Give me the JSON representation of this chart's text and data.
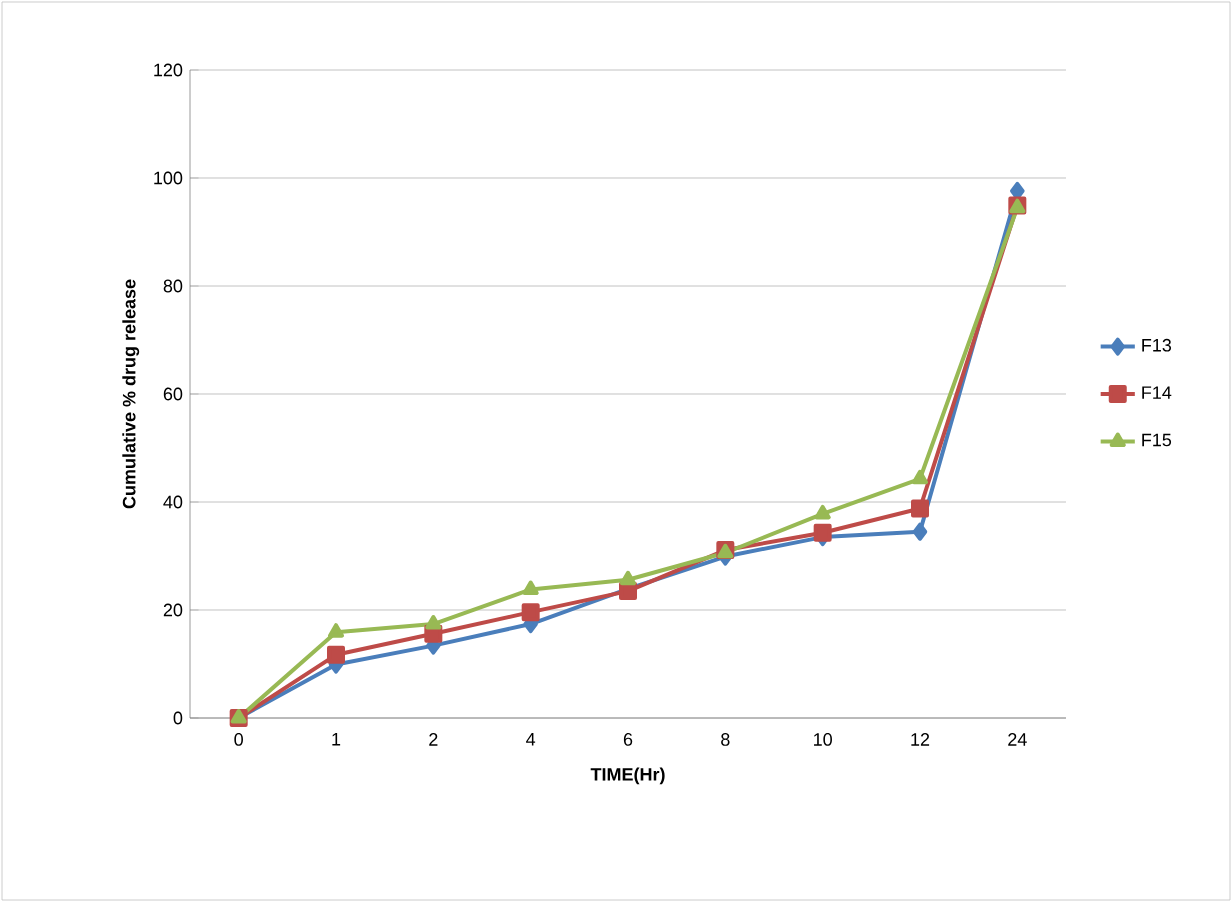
{
  "chart_data": {
    "type": "line",
    "xlabel": "TIME(Hr)",
    "ylabel": "Cumulative % drug release",
    "categories": [
      "0",
      "1",
      "2",
      "4",
      "6",
      "8",
      "10",
      "12",
      "24"
    ],
    "series": [
      {
        "name": "F13",
        "color": "#4a7ebb",
        "marker": "diamond",
        "values": [
          0,
          9.9,
          13.4,
          17.4,
          23.9,
          29.9,
          33.5,
          34.5,
          97.6
        ]
      },
      {
        "name": "F14",
        "color": "#be4b48",
        "marker": "square",
        "values": [
          0,
          11.7,
          15.6,
          19.6,
          23.5,
          31.1,
          34.3,
          38.8,
          94.9
        ]
      },
      {
        "name": "F15",
        "color": "#98b954",
        "marker": "triangle",
        "values": [
          0,
          15.9,
          17.4,
          23.8,
          25.6,
          30.6,
          37.8,
          44.3,
          94.5
        ]
      }
    ],
    "ylim": [
      0,
      120
    ],
    "yticks": [
      0,
      20,
      40,
      60,
      80,
      100,
      120
    ],
    "grid": "y",
    "legend": "right"
  }
}
